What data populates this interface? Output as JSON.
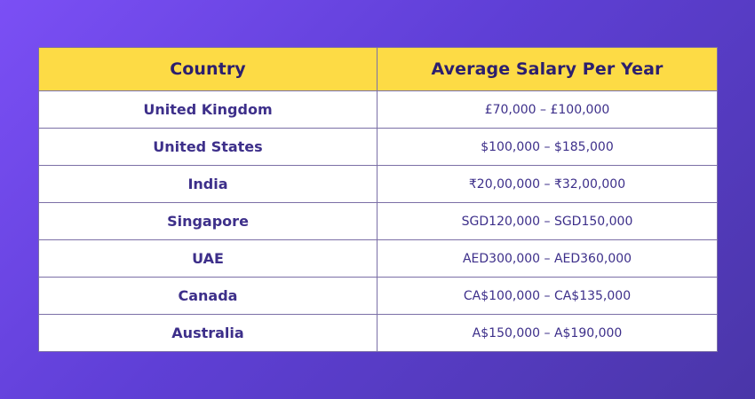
{
  "table": {
    "headers": {
      "country": "Country",
      "salary": "Average Salary Per Year"
    },
    "rows": [
      {
        "country": "United Kingdom",
        "salary": "£70,000 – £100,000"
      },
      {
        "country": "United States",
        "salary": "$100,000 – $185,000"
      },
      {
        "country": "India",
        "salary": "₹20,00,000 – ₹32,00,000"
      },
      {
        "country": "Singapore",
        "salary": "SGD120,000 – SGD150,000"
      },
      {
        "country": "UAE",
        "salary": "AED300,000 – AED360,000"
      },
      {
        "country": "Canada",
        "salary": "CA$100,000 – CA$135,000"
      },
      {
        "country": "Australia",
        "salary": "A$150,000 – A$190,000"
      }
    ]
  },
  "colors": {
    "background_start": "#7b4ff5",
    "background_end": "#4a36a8",
    "header_fill": "#fddb45",
    "header_text": "#2c1f6e",
    "body_text": "#3d2f8a",
    "border": "#7b6fa6"
  }
}
